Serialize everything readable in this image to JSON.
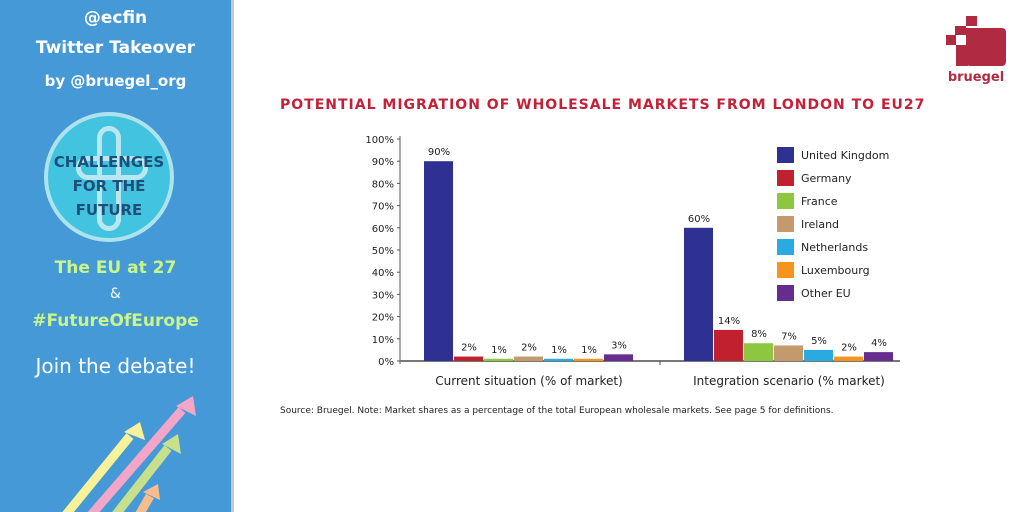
{
  "sidebar": {
    "handle": "@ecfin",
    "takeover": "Twitter Takeover",
    "by": "by @bruegel_org",
    "badge": "CHALLENGES FOR THE FUTURE",
    "eu27": "The EU at 27",
    "amp": "&",
    "hashtag": "#FutureOfEurope",
    "cta": "Join the debate!"
  },
  "logo": {
    "text": "bruegel",
    "color": "#b02b42"
  },
  "chart_data": {
    "type": "bar",
    "title": "POTENTIAL MIGRATION OF WHOLESALE MARKETS FROM LONDON TO EU27",
    "categories": [
      "Current situation (% of market)",
      "Integration scenario (% market)"
    ],
    "yticks": [
      "0%",
      "10%",
      "20%",
      "30%",
      "40%",
      "50%",
      "60%",
      "70%",
      "80%",
      "90%",
      "100%"
    ],
    "ylim": [
      0,
      100
    ],
    "legend_position": "top-right",
    "series": [
      {
        "name": "United Kingdom",
        "color": "#2e3192",
        "values": [
          90,
          60
        ],
        "labels": [
          "90%",
          "60%"
        ]
      },
      {
        "name": "Germany",
        "color": "#c1202f",
        "values": [
          2,
          14
        ],
        "labels": [
          "2%",
          "14%"
        ]
      },
      {
        "name": "France",
        "color": "#8dc63f",
        "values": [
          1,
          8
        ],
        "labels": [
          "1%",
          "8%"
        ]
      },
      {
        "name": "Ireland",
        "color": "#c49a6c",
        "values": [
          2,
          7
        ],
        "labels": [
          "2%",
          "7%"
        ]
      },
      {
        "name": "Netherlands",
        "color": "#29abe2",
        "values": [
          1,
          5
        ],
        "labels": [
          "1%",
          "5%"
        ]
      },
      {
        "name": "Luxembourg",
        "color": "#f7941d",
        "values": [
          1,
          2
        ],
        "labels": [
          "1%",
          "2%"
        ]
      },
      {
        "name": "Other EU",
        "color": "#662d91",
        "values": [
          3,
          4
        ],
        "labels": [
          "3%",
          "4%"
        ]
      }
    ],
    "source": "Source: Bruegel. Note: Market shares as a percentage of the total European wholesale markets. See page 5 for definitions."
  }
}
